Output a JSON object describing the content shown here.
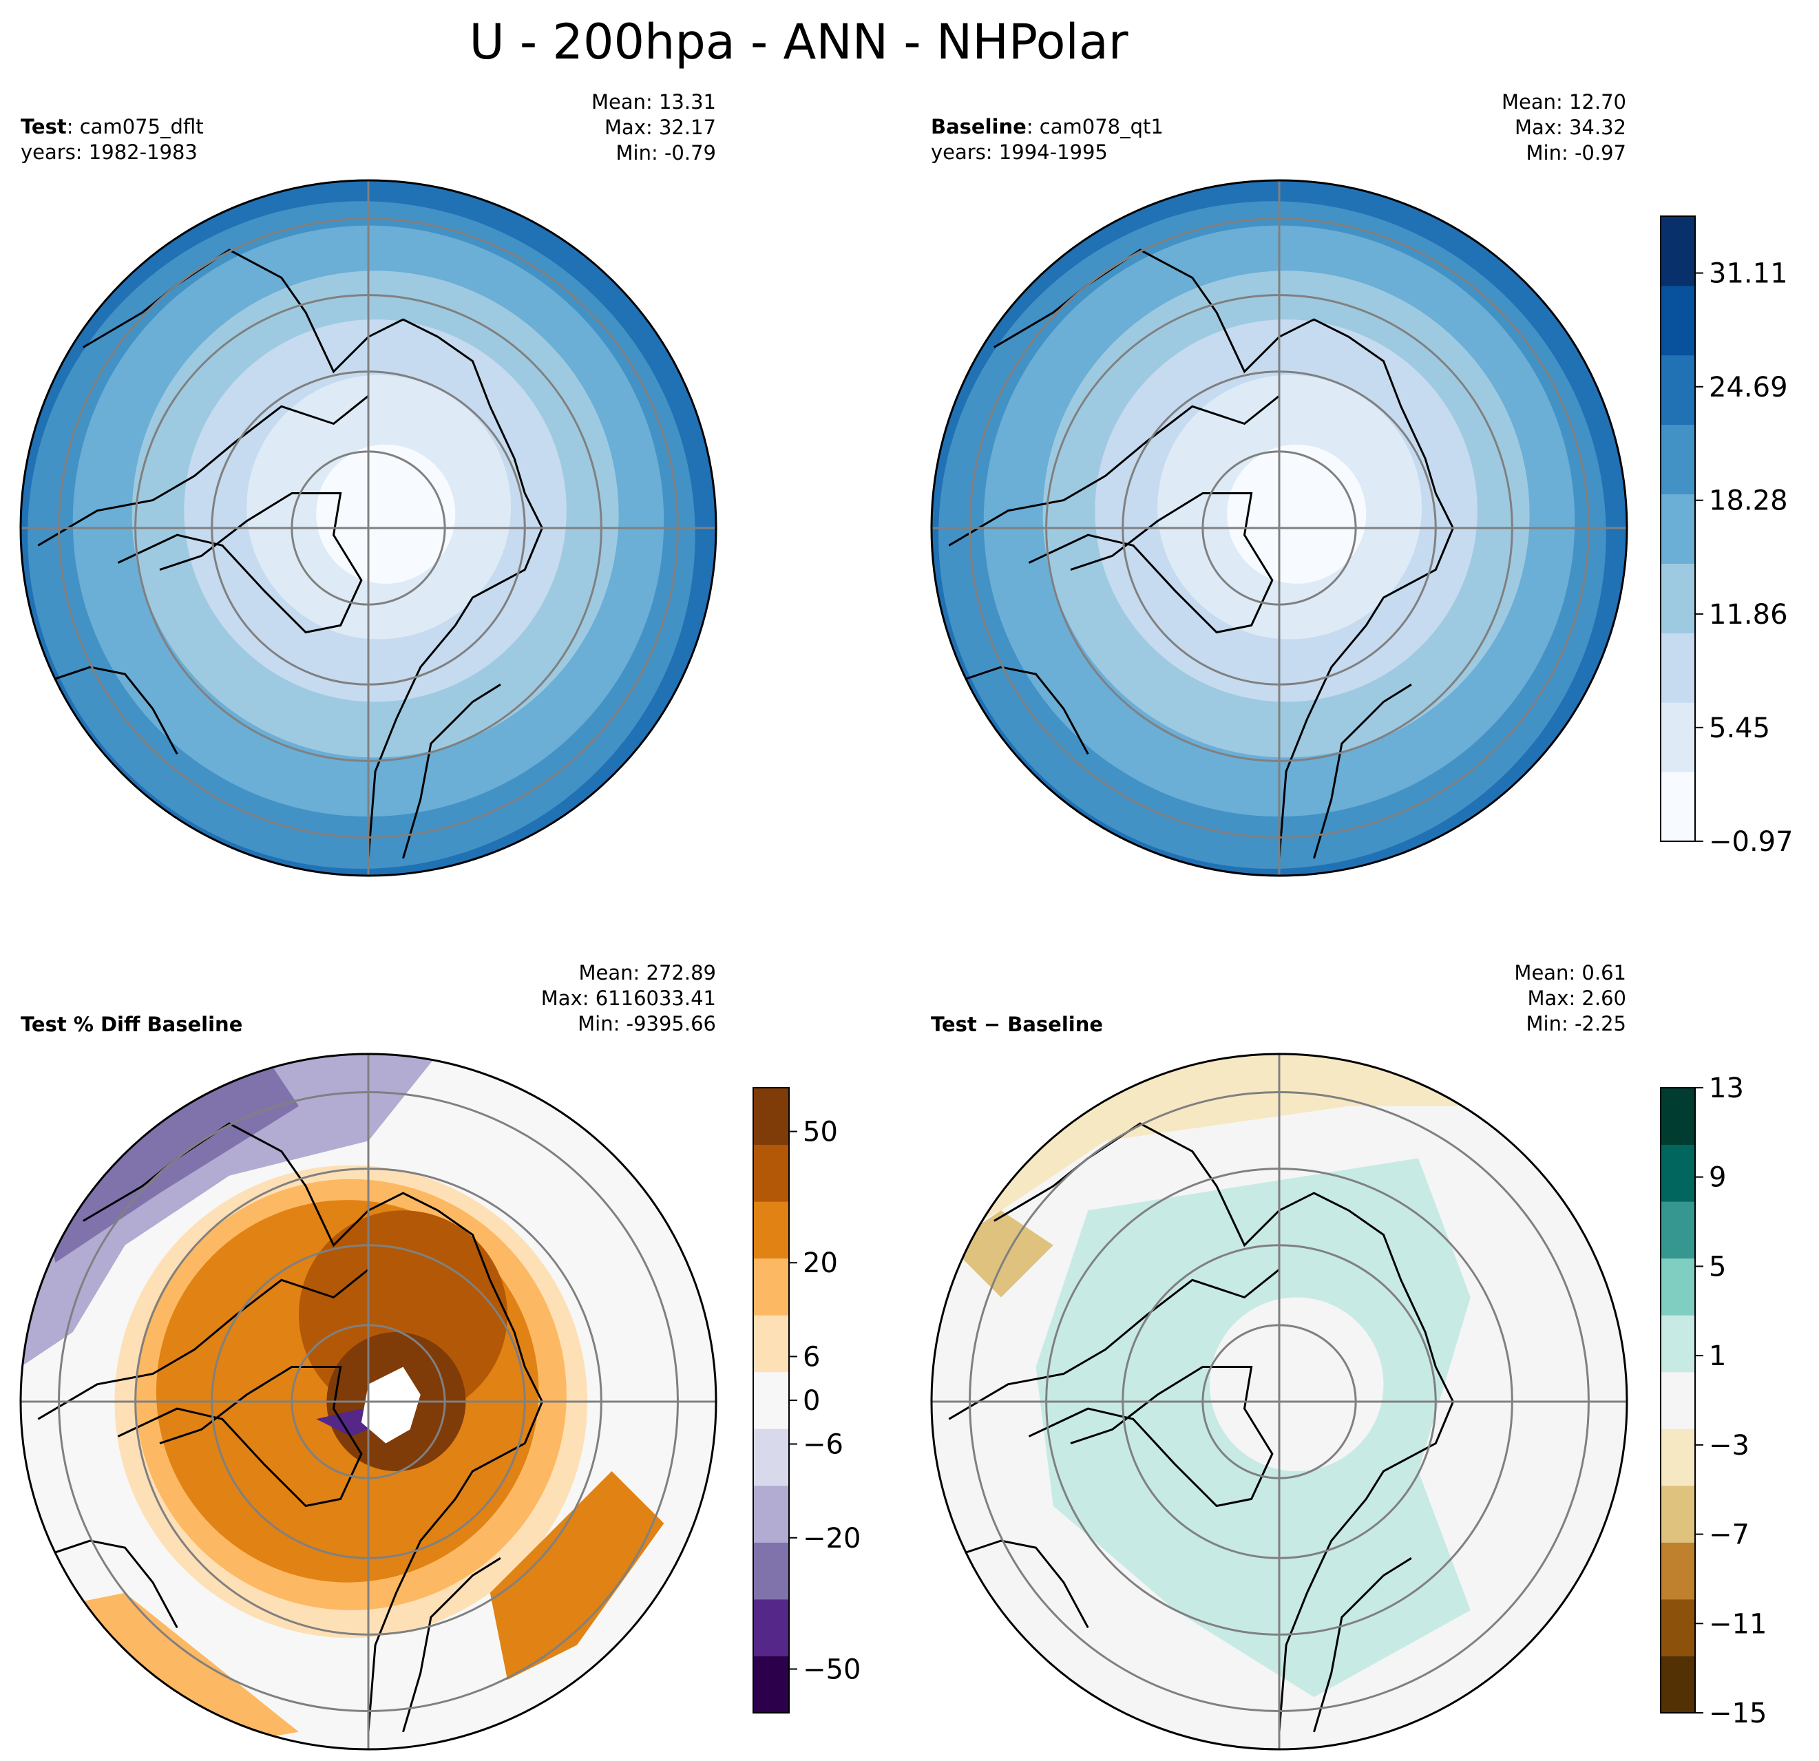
{
  "title": "U - 200hpa - ANN - NHPolar",
  "panels": [
    {
      "id": "test",
      "label_bold": "Test",
      "label_rest": ": cam075_dflt",
      "years": "years: 1982-1983",
      "stats": [
        "Mean: 13.31",
        "Max: 32.17",
        "Min: -0.79"
      ]
    },
    {
      "id": "baseline",
      "label_bold": "Baseline",
      "label_rest": ": cam078_qt1",
      "years": "years: 1994-1995",
      "stats": [
        "Mean: 12.70",
        "Max: 34.32",
        "Min: -0.97"
      ]
    },
    {
      "id": "pctdiff",
      "label_bold": "Test % Diff Baseline",
      "label_rest": "",
      "years": "",
      "stats": [
        "Mean: 272.89",
        "Max: 6116033.41",
        "Min: -9395.66"
      ]
    },
    {
      "id": "diff",
      "label_bold": "Test − Baseline",
      "label_rest": "",
      "years": "",
      "stats": [
        "Mean:  0.61",
        "Max:  2.60",
        "Min: -2.25"
      ]
    }
  ],
  "colorbars": {
    "shared": {
      "ticks": [
        "−0.97",
        "5.45",
        "11.86",
        "18.28",
        "24.69",
        "31.11"
      ],
      "min": -0.97,
      "max": 34.32,
      "colors": [
        "#f7fbff",
        "#deebf7",
        "#c6dbef",
        "#9ecae1",
        "#6baed6",
        "#4292c6",
        "#2171b5",
        "#08519c",
        "#08306b"
      ]
    },
    "pctdiff": {
      "ticks": [
        "−50",
        "−20",
        "−6",
        "0",
        "6",
        "20",
        "50"
      ],
      "colors": [
        "#2d004b",
        "#542788",
        "#8073ac",
        "#b2abd2",
        "#d8daeb",
        "#f7f7f7",
        "#fee0b6",
        "#fdb863",
        "#e08214",
        "#b35806",
        "#7f3b08"
      ]
    },
    "diff": {
      "ticks": [
        "−15",
        "−11",
        "−7",
        "−3",
        "1",
        "5",
        "9",
        "13"
      ],
      "colors": [
        "#543005",
        "#8c510a",
        "#bf812d",
        "#dfc27d",
        "#f6e8c3",
        "#f5f5f5",
        "#c7eae5",
        "#80cdc1",
        "#35978f",
        "#01665e",
        "#003c30"
      ]
    }
  },
  "chart_data": [
    {
      "type": "heatmap",
      "title": "Test: cam075_dflt",
      "projection": "north polar stereographic",
      "variable": "U",
      "level": "200hpa",
      "season": "ANN",
      "mean": 13.31,
      "max": 32.17,
      "min": -0.79,
      "colorbar_range": [
        -0.97,
        34.32
      ]
    },
    {
      "type": "heatmap",
      "title": "Baseline: cam078_qt1",
      "projection": "north polar stereographic",
      "variable": "U",
      "level": "200hpa",
      "season": "ANN",
      "mean": 12.7,
      "max": 34.32,
      "min": -0.97,
      "colorbar_range": [
        -0.97,
        34.32
      ]
    },
    {
      "type": "heatmap",
      "title": "Test % Diff Baseline",
      "projection": "north polar stereographic",
      "mean": 272.89,
      "max": 6116033.41,
      "min": -9395.66,
      "colorbar_ticks": [
        -50,
        -20,
        -6,
        0,
        6,
        20,
        50
      ]
    },
    {
      "type": "heatmap",
      "title": "Test − Baseline",
      "projection": "north polar stereographic",
      "mean": 0.61,
      "max": 2.6,
      "min": -2.25,
      "colorbar_range": [
        -15,
        13
      ],
      "colorbar_ticks": [
        -15,
        -11,
        -7,
        -3,
        1,
        5,
        9,
        13
      ]
    }
  ]
}
